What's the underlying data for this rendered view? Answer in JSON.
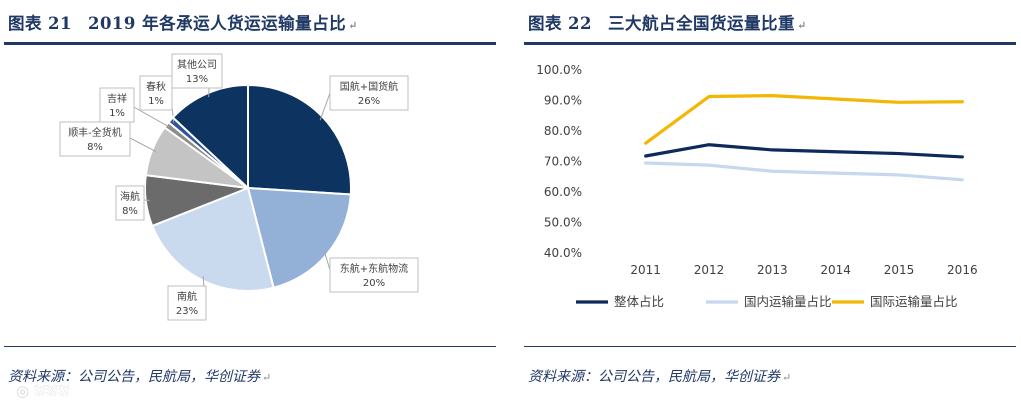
{
  "left": {
    "title_prefix": "图表",
    "title_number": "21",
    "title_text": "2019 年各承运人货运运输量占比",
    "source": "资料来源：公司公告，民航局，华创证券"
  },
  "right": {
    "title_prefix": "图表",
    "title_number": "22",
    "title_text": "三大航占全国货运量比重",
    "source": "资料来源：公司公告，民航局，华创证券"
  },
  "chart_data": [
    {
      "type": "pie",
      "slices": [
        {
          "label": "国航+国货航",
          "value": 26,
          "pct_label": "26%",
          "color": "#0d3361"
        },
        {
          "label": "东航+东航物流",
          "value": 20,
          "pct_label": "20%",
          "color": "#93b1d6"
        },
        {
          "label": "南航",
          "value": 23,
          "pct_label": "23%",
          "color": "#c9d9ee"
        },
        {
          "label": "海航",
          "value": 8,
          "pct_label": "8%",
          "color": "#6b6b6b"
        },
        {
          "label": "顺丰-全货机",
          "value": 8,
          "pct_label": "8%",
          "color": "#c4c4c4"
        },
        {
          "label": "吉祥",
          "value": 1,
          "pct_label": "1%",
          "color": "#8c8c8c"
        },
        {
          "label": "春秋",
          "value": 1,
          "pct_label": "1%",
          "color": "#2f5597"
        },
        {
          "label": "其他公司",
          "value": 13,
          "pct_label": "13%",
          "color": "#0d3361"
        }
      ]
    },
    {
      "type": "line",
      "x": [
        "2011",
        "2012",
        "2013",
        "2014",
        "2015",
        "2016"
      ],
      "ylim": [
        40,
        100
      ],
      "yticks": [
        "40.0%",
        "50.0%",
        "60.0%",
        "70.0%",
        "80.0%",
        "90.0%",
        "100.0%"
      ],
      "grid": false,
      "legend": "bottom",
      "series": [
        {
          "name": "整体占比",
          "values": [
            71.8,
            75.5,
            73.8,
            73.2,
            72.6,
            71.5
          ],
          "color": "#0d2a5a"
        },
        {
          "name": "国内运输量占比",
          "values": [
            69.5,
            68.8,
            66.8,
            66.2,
            65.6,
            64.0
          ],
          "color": "#c5d8ee"
        },
        {
          "name": "国际运输量占比",
          "values": [
            76.0,
            91.3,
            91.6,
            90.5,
            89.4,
            89.6
          ],
          "color": "#f2b705"
        }
      ]
    }
  ]
}
